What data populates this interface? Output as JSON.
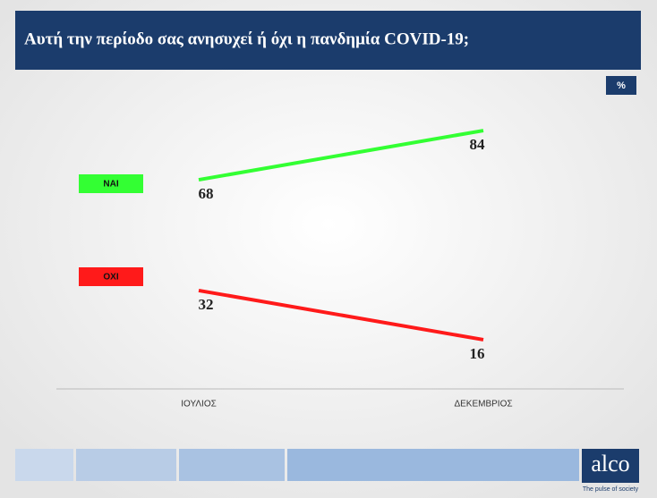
{
  "chart_data": {
    "type": "line",
    "title": "Αυτή την περίοδο σας ανησυχεί ή όχι η πανδημία COVID-19;",
    "unit": "%",
    "categories": [
      "ΙΟΥΛΙΟΣ",
      "ΔΕΚΕΜΒΡΙΟΣ"
    ],
    "series": [
      {
        "name": "ΝΑΙ",
        "color": "#33ff33",
        "values": [
          68,
          84
        ]
      },
      {
        "name": "ΟΧΙ",
        "color": "#ff1a1a",
        "values": [
          32,
          16
        ]
      }
    ],
    "ylim": [
      0,
      100
    ]
  },
  "brand": {
    "name": "alco",
    "tagline": "The pulse of society"
  }
}
